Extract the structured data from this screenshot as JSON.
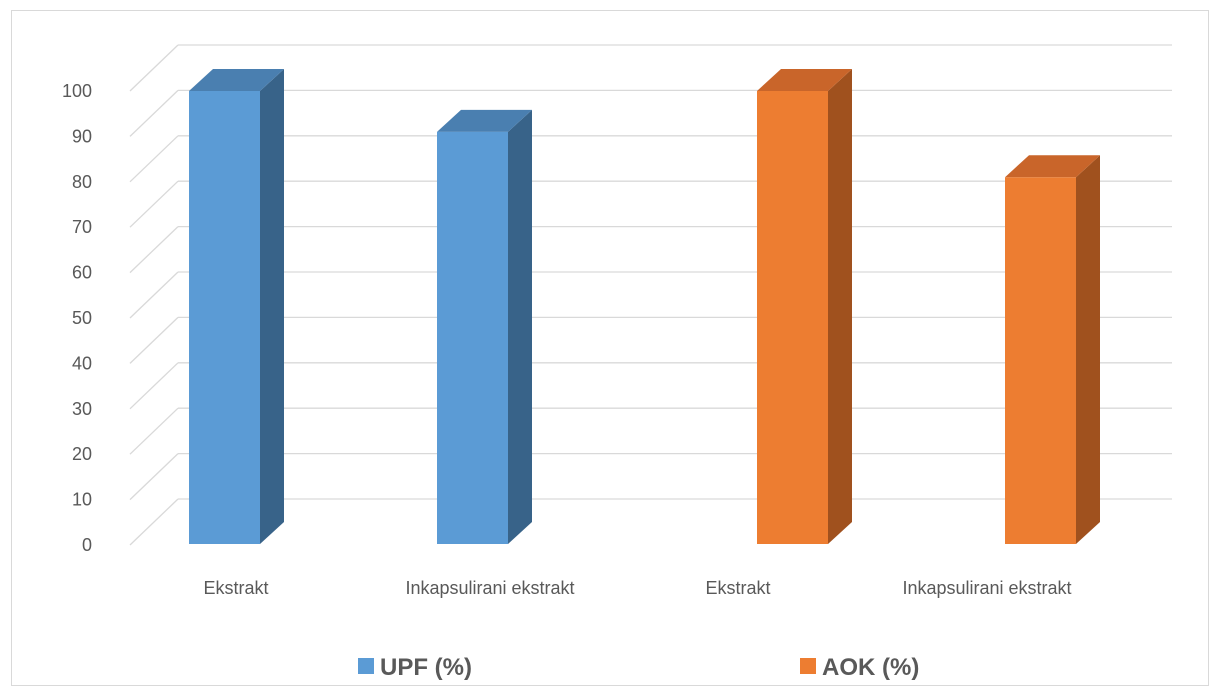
{
  "chart_data": {
    "type": "bar",
    "style": "3d-column",
    "ylim": [
      0,
      100
    ],
    "yticks": [
      0,
      10,
      20,
      30,
      40,
      50,
      60,
      70,
      80,
      90,
      100
    ],
    "categories": [
      "Ekstrakt",
      "Inkapsulirani ekstrakt",
      "Ekstrakt",
      "Inkapsulirani ekstrakt"
    ],
    "series": [
      {
        "name": "UPF (%)",
        "color": "#5b9bd5",
        "side_color": "#386389",
        "top_color": "#4a7fb0",
        "values": [
          100,
          91,
          null,
          null
        ]
      },
      {
        "name": "AOK (%)",
        "color": "#ed7d31",
        "side_color": "#a0511e",
        "top_color": "#c9652a",
        "values": [
          null,
          null,
          100,
          81
        ]
      }
    ],
    "grid": true,
    "legend": "bottom",
    "title": "",
    "xlabel": "",
    "ylabel": ""
  }
}
